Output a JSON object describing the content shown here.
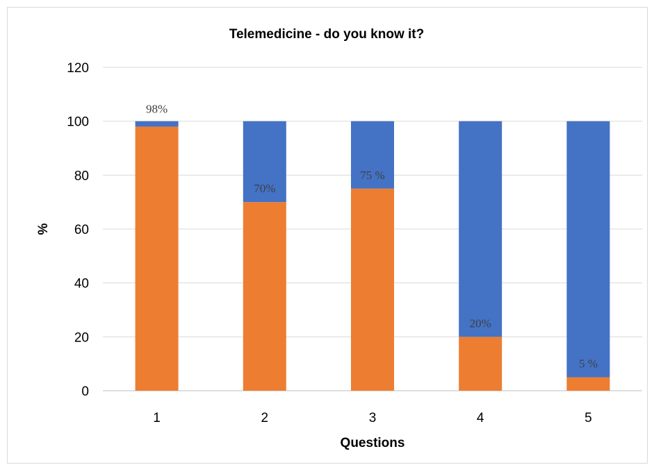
{
  "chart_data": {
    "type": "bar",
    "stacked": true,
    "title": "Telemedicine - do you know it?",
    "xlabel": "Questions",
    "ylabel": "%",
    "ylim": [
      0,
      120
    ],
    "yticks": [
      0,
      20,
      40,
      60,
      80,
      100,
      120
    ],
    "grid": true,
    "categories": [
      "1",
      "2",
      "3",
      "4",
      "5"
    ],
    "series": [
      {
        "color": "#ED7D31",
        "values": [
          98,
          70,
          75,
          20,
          5
        ]
      },
      {
        "color": "#4472C4",
        "values": [
          2,
          30,
          25,
          80,
          95
        ]
      }
    ],
    "data_labels": [
      "98%",
      "70%",
      "75 %",
      "20%",
      "5 %"
    ]
  }
}
